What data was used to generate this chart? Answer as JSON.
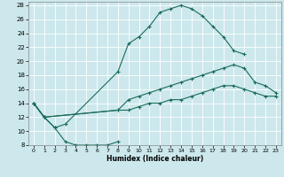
{
  "xlabel": "Humidex (Indice chaleur)",
  "bg_color": "#cce8ec",
  "grid_color": "#ffffff",
  "line_color": "#1a6b5a",
  "xlim": [
    -0.5,
    23.5
  ],
  "ylim": [
    8,
    28.5
  ],
  "xticks": [
    0,
    1,
    2,
    3,
    4,
    5,
    6,
    7,
    8,
    9,
    10,
    11,
    12,
    13,
    14,
    15,
    16,
    17,
    18,
    19,
    20,
    21,
    22,
    23
  ],
  "yticks": [
    8,
    10,
    12,
    14,
    16,
    18,
    20,
    22,
    24,
    26,
    28
  ],
  "line1_x": [
    0,
    1,
    2,
    3,
    4,
    5,
    6,
    7,
    8
  ],
  "line1_y": [
    14.0,
    12.0,
    10.5,
    8.5,
    8.0,
    8.0,
    8.0,
    8.0,
    8.5
  ],
  "line2_x": [
    0,
    1,
    2,
    3,
    8,
    9,
    10,
    11,
    12,
    13,
    14,
    15,
    16,
    17,
    18,
    19,
    20
  ],
  "line2_y": [
    14.0,
    12.0,
    10.5,
    11.0,
    18.5,
    22.5,
    23.5,
    25.0,
    27.0,
    27.5,
    28.0,
    27.5,
    26.5,
    25.0,
    23.5,
    21.5,
    21.0
  ],
  "line3_x": [
    0,
    1,
    8,
    9,
    10,
    11,
    12,
    13,
    14,
    15,
    16,
    17,
    18,
    19,
    20,
    21,
    22,
    23
  ],
  "line3_y": [
    14.0,
    12.0,
    13.0,
    14.5,
    15.0,
    15.5,
    16.0,
    16.5,
    17.0,
    17.5,
    18.0,
    18.5,
    19.0,
    19.5,
    19.0,
    17.0,
    16.5,
    15.5
  ],
  "line4_x": [
    0,
    1,
    8,
    9,
    10,
    11,
    12,
    13,
    14,
    15,
    16,
    17,
    18,
    19,
    20,
    21,
    22,
    23
  ],
  "line4_y": [
    14.0,
    12.0,
    13.0,
    13.0,
    13.5,
    14.0,
    14.0,
    14.5,
    14.5,
    15.0,
    15.5,
    16.0,
    16.5,
    16.5,
    16.0,
    15.5,
    15.0,
    15.0
  ]
}
